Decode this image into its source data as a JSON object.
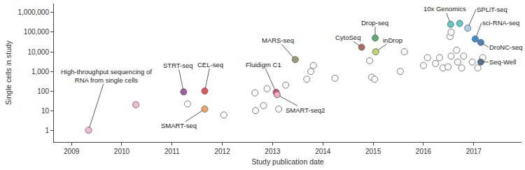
{
  "chart_data": {
    "type": "scatter",
    "x_label": "Study publication date",
    "y_label": "Single cells in study",
    "log": "y",
    "grid": false,
    "marker": "circle",
    "xlim": [
      2008.65,
      2017.95
    ],
    "xticks": [
      2009,
      2010,
      2011,
      2012,
      2013,
      2014,
      2015,
      2016,
      2017
    ],
    "ylim": [
      0.25,
      2900000
    ],
    "yticks": [
      1,
      10,
      100,
      {
        "value": 1000,
        "label": "1,000"
      },
      {
        "value": 10000,
        "label": "10,000"
      },
      {
        "value": 100000,
        "label": "100,000"
      },
      {
        "value": 1000000,
        "label": "1,000,000"
      }
    ],
    "x": [
      2009.34,
      2010.28,
      2011.31,
      2011.23,
      2011.65,
      2011.65,
      2012.03,
      2012.65,
      2012.66,
      2012.82,
      2012.89,
      2013.12,
      2013.26,
      2013.07,
      2013.09,
      2013.45,
      2013.68,
      2013.76,
      2013.81,
      2014.24,
      2014.93,
      2014.97,
      2015.03,
      2014.77,
      2015.04,
      2015.05,
      2015.54,
      2015.62,
      2016.0,
      2016.08,
      2016.24,
      2016.32,
      2016.39,
      2016.49,
      2016.55,
      2016.66,
      2016.68,
      2016.53,
      2016.55,
      2016.76,
      2016.8,
      2016.97,
      2017.08,
      2017.18,
      2016.54,
      2016.72,
      2016.88,
      2017.03,
      2017.14,
      2017.14
    ],
    "values": [
      1,
      20,
      22,
      90,
      100,
      12,
      6,
      80,
      10,
      18,
      130,
      12,
      200,
      85,
      65,
      4000,
      400,
      1000,
      2000,
      450,
      3500,
      500,
      400,
      17000,
      50000,
      10000,
      1000,
      10000,
      2000,
      5000,
      2500,
      5000,
      1500,
      1700,
      6000,
      12000,
      3000,
      60000,
      100000,
      1500,
      6000,
      3000,
      1500,
      5000,
      250000,
      280000,
      160000,
      45000,
      30000,
      3000
    ],
    "colors": [
      "#f6b8d5",
      "#f6b8d5",
      "#ffffff",
      "#a25aa8",
      "#e8534a",
      "#f5a25d",
      "#ffffff",
      "#ffffff",
      "#ffffff",
      "#ffffff",
      "#ffffff",
      "#ffffff",
      "#ffffff",
      "#e2457c",
      "#f3a9c4",
      "#9c9b6c",
      "#ffffff",
      "#ffffff",
      "#ffffff",
      "#ffffff",
      "#ffffff",
      "#ffffff",
      "#ffffff",
      "#b3695a",
      "#5bb06a",
      "#bdd56b",
      "#ffffff",
      "#ffffff",
      "#ffffff",
      "#ffffff",
      "#ffffff",
      "#ffffff",
      "#ffffff",
      "#ffffff",
      "#ffffff",
      "#ffffff",
      "#ffffff",
      "#ffffff",
      "#ffffff",
      "#ffffff",
      "#ffffff",
      "#ffffff",
      "#ffffff",
      "#ffffff",
      "#5ccaca",
      "#5ccaca",
      "#a4d4eb",
      "#3b8fd4",
      "#4a7fc2",
      "#50708e"
    ],
    "labels": [
      "High-throughput sequencing of\nRNA from single cells",
      null,
      null,
      "STRT-seq",
      "CEL-seq",
      "SMART-seq",
      null,
      null,
      null,
      null,
      null,
      null,
      null,
      "Fluidigm C1",
      "SMART-seq2",
      "MARS-seq",
      null,
      null,
      null,
      null,
      null,
      null,
      null,
      "CytoSeq",
      "Drop-seq",
      "inDrop",
      null,
      null,
      null,
      null,
      null,
      null,
      null,
      null,
      null,
      null,
      null,
      null,
      null,
      null,
      null,
      null,
      null,
      null,
      "10x Genomics",
      null,
      "SPLiT-seq",
      "sci-RNA-seq",
      "DroNC-seq",
      "Seq-Well"
    ]
  }
}
